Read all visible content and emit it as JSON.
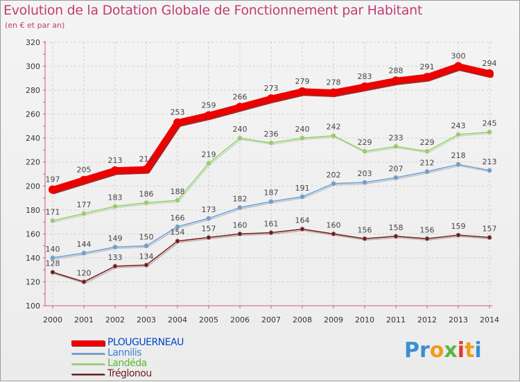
{
  "header": {
    "title": "Evolution de la Dotation Globale de Fonctionnement par Habitant",
    "subtitle": "(en € et par an)"
  },
  "logo": {
    "letters": [
      {
        "char": "P",
        "color": "#3a8fd0"
      },
      {
        "char": "r",
        "color": "#3a8fd0"
      },
      {
        "char": "o",
        "color": "#f39a1e"
      },
      {
        "char": "x",
        "color": "#5bb545"
      },
      {
        "char": "i",
        "color": "#e0392b"
      },
      {
        "char": "t",
        "color": "#f39a1e"
      },
      {
        "char": "i",
        "color": "#3a8fd0"
      }
    ]
  },
  "colors": {
    "grid": "#cfcfcf",
    "axis": "#cc5a8a",
    "tick_text": "#333333",
    "value_text": "#444444"
  },
  "chart_data": {
    "type": "line",
    "title": "Evolution de la Dotation Globale de Fonctionnement par Habitant",
    "subtitle": "(en € et par an)",
    "xlabel": "",
    "ylabel": "",
    "ylim": [
      100,
      320
    ],
    "yticks": [
      100,
      120,
      140,
      160,
      180,
      200,
      220,
      240,
      260,
      280,
      300,
      320
    ],
    "grid": true,
    "legend_position": "bottom-left",
    "x": [
      "2000",
      "2001",
      "2002",
      "2003",
      "2004",
      "2005",
      "2006",
      "2007",
      "2008",
      "2009",
      "2010",
      "2011",
      "2012",
      "2013",
      "2014"
    ],
    "series": [
      {
        "name": "PLOUGUERNEAU",
        "color": "#ee0000",
        "shadow": "#9a1010",
        "label_color": "#0044cc",
        "bold": true,
        "key": "plouguerneau",
        "values": [
          197,
          205,
          213,
          214,
          253,
          259,
          266,
          273,
          279,
          278,
          283,
          288,
          291,
          300,
          294
        ]
      },
      {
        "name": "Lannilis",
        "color": "#6a9fd4",
        "shadow": "#9aa4b0",
        "label_color": "#3a7fd5",
        "bold": false,
        "key": "lannilis",
        "values": [
          140,
          144,
          149,
          150,
          166,
          173,
          182,
          187,
          191,
          202,
          203,
          207,
          212,
          218,
          213
        ]
      },
      {
        "name": "Landéda",
        "color": "#8fd45a",
        "shadow": "#b5bfae",
        "label_color": "#58b830",
        "bold": false,
        "key": "landeda",
        "values": [
          171,
          177,
          183,
          186,
          188,
          219,
          240,
          236,
          240,
          242,
          229,
          233,
          229,
          243,
          245
        ]
      },
      {
        "name": "Tréglonou",
        "color": "#6e1c1c",
        "shadow": "#a08080",
        "label_color": "#6e1c1c",
        "bold": false,
        "key": "treglonou",
        "values": [
          128,
          120,
          133,
          134,
          154,
          157,
          160,
          161,
          164,
          160,
          156,
          158,
          156,
          159,
          157
        ]
      }
    ]
  }
}
